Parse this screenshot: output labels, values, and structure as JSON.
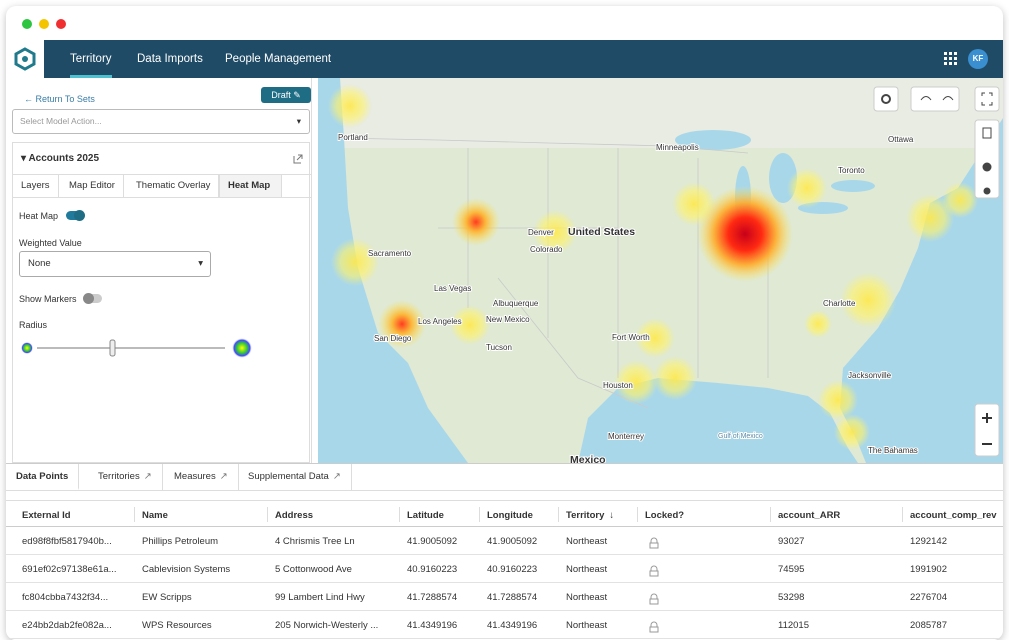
{
  "nav": {
    "tabs": [
      "Territory",
      "Data Imports",
      "People Management"
    ],
    "avatar": "KF"
  },
  "panel": {
    "back": "Return To Sets",
    "draft": "Draft",
    "select_placeholder": "Select Model Action...",
    "section": "Accounts 2025",
    "tabs": [
      "Layers",
      "Map Editor",
      "Thematic Overlay",
      "Heat Map"
    ],
    "heat_map_label": "Heat Map",
    "weighted_value_label": "Weighted Value",
    "weighted_value": "None",
    "show_markers": "Show Markers",
    "radius": "Radius"
  },
  "map": {
    "labels": [
      "Portland",
      "Minneapolis",
      "Ottawa",
      "Toronto",
      "United States",
      "Denver",
      "Colorado",
      "Las Vegas",
      "Albuquerque",
      "New Mexico",
      "Los Angeles",
      "San Diego",
      "Tucson",
      "Fort Worth",
      "Houston",
      "Jacksonville",
      "Charlotte",
      "Monterrey",
      "Gulf of Mexico",
      "Mexico",
      "The Bahamas",
      "Sacramento"
    ]
  },
  "table": {
    "tabs": [
      "Data Points",
      "Territories",
      "Measures",
      "Supplemental Data"
    ],
    "columns": [
      "External Id",
      "Name",
      "Address",
      "Latitude",
      "Longitude",
      "Territory",
      "Locked?",
      "account_ARR",
      "account_comp_rev"
    ],
    "rows": [
      [
        "ed98f8fbf5817940b...",
        "Phillips Petroleum",
        "4 Chrismis Tree Ln",
        "41.9005092",
        "41.9005092",
        "Northeast",
        "",
        "93027",
        "1292142"
      ],
      [
        "691ef02c97138e61a...",
        "Cablevision Systems",
        "5 Cottonwood Ave",
        "40.9160223",
        "40.9160223",
        "Northeast",
        "",
        "74595",
        "1991902"
      ],
      [
        "fc804cbba7432f34...",
        "EW Scripps",
        "99 Lambert Lind Hwy",
        "41.7288574",
        "41.7288574",
        "Northeast",
        "",
        "53298",
        "2276704"
      ],
      [
        "e24bb2dab2fe082a...",
        "WPS Resources",
        "205 Norwich-Westerly ...",
        "41.4349196",
        "41.4349196",
        "Northeast",
        "",
        "112015",
        "2085787"
      ]
    ]
  }
}
